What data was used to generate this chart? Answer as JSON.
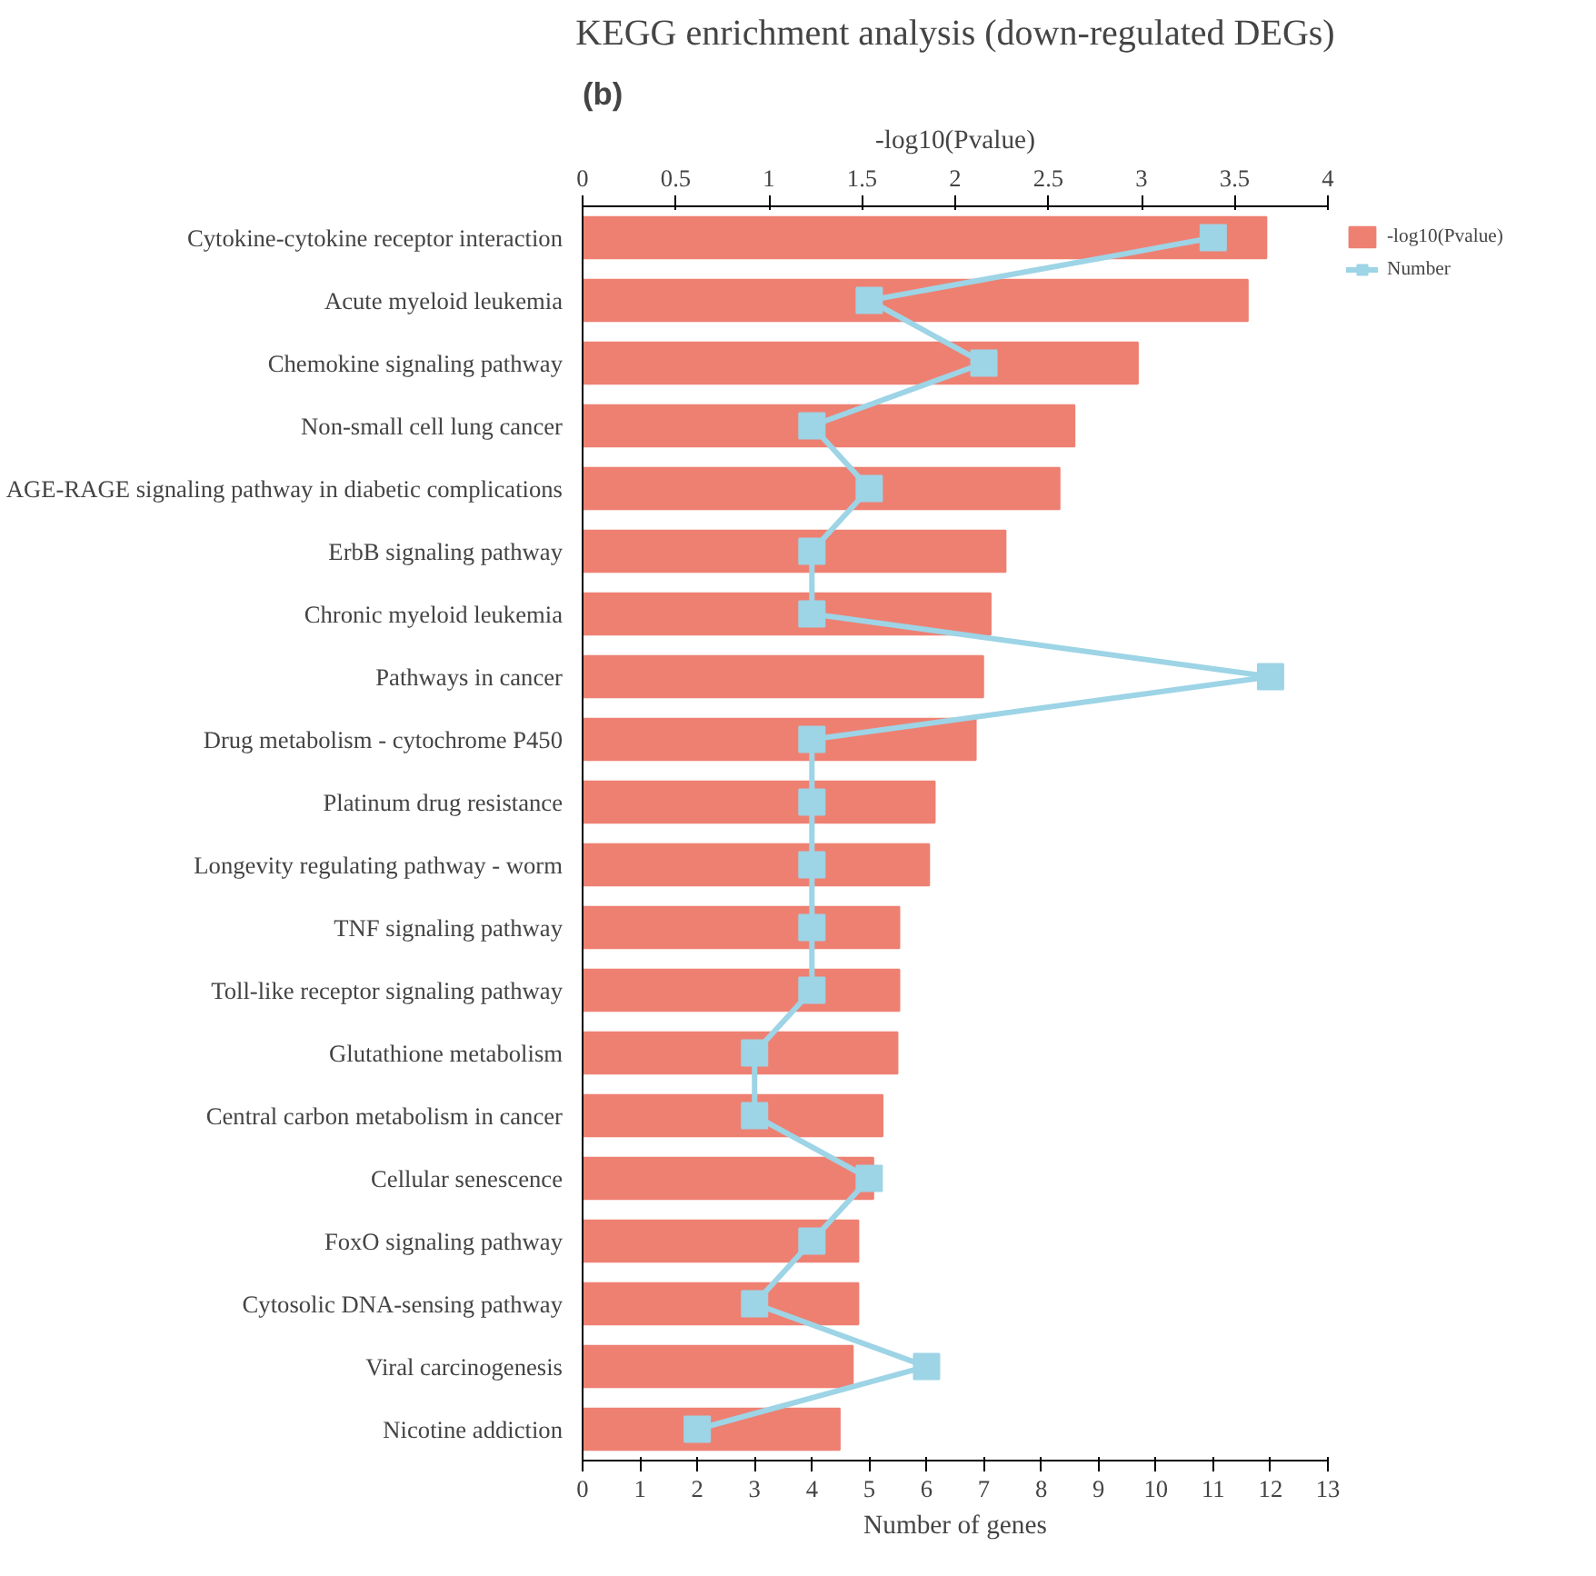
{
  "chart_data": {
    "type": "bar",
    "orientation": "horizontal",
    "title": "KEGG enrichment analysis (down-regulated DEGs)",
    "xlabel": "Number of genes",
    "x2label": "-log10(Pvalue)",
    "annotations": [
      "(b)"
    ],
    "categories": [
      "Cytokine-cytokine receptor interaction",
      "Acute myeloid leukemia",
      "Chemokine signaling pathway",
      "Non-small cell lung cancer",
      "AGE-RAGE signaling pathway in diabetic complications",
      "ErbB signaling pathway",
      "Chronic myeloid leukemia",
      "Pathways in cancer",
      "Drug metabolism - cytochrome P450",
      "Platinum drug resistance",
      "Longevity regulating pathway - worm",
      "TNF signaling pathway",
      "Toll-like receptor signaling pathway",
      "Glutathione metabolism",
      "Central carbon metabolism in cancer",
      "Cellular senescence",
      "FoxO signaling pathway",
      "Cytosolic DNA-sensing pathway",
      "Viral carcinogenesis",
      "Nicotine addiction"
    ],
    "series": [
      {
        "name": "-log10(Pvalue)",
        "type": "bar",
        "axis": "x2",
        "color": "#ee8072",
        "values": [
          3.67,
          3.57,
          2.98,
          2.64,
          2.56,
          2.27,
          2.19,
          2.15,
          2.11,
          1.89,
          1.86,
          1.7,
          1.7,
          1.69,
          1.61,
          1.56,
          1.48,
          1.48,
          1.45,
          1.38
        ]
      },
      {
        "name": "Number",
        "type": "line",
        "marker": "square",
        "color": "#9dd4e6",
        "values": [
          11,
          5,
          7,
          4,
          5,
          4,
          4,
          12,
          4,
          4,
          4,
          4,
          4,
          3,
          3,
          5,
          4,
          3,
          6,
          2
        ]
      }
    ],
    "xlim": [
      0,
      13
    ],
    "xticks": [
      0,
      1,
      2,
      3,
      4,
      5,
      6,
      7,
      8,
      9,
      10,
      11,
      12,
      13
    ],
    "x2lim": [
      0,
      4
    ],
    "x2ticks": [
      0,
      0.5,
      1,
      1.5,
      2,
      2.5,
      3,
      3.5,
      4
    ],
    "legend": "top right",
    "grid": false
  }
}
